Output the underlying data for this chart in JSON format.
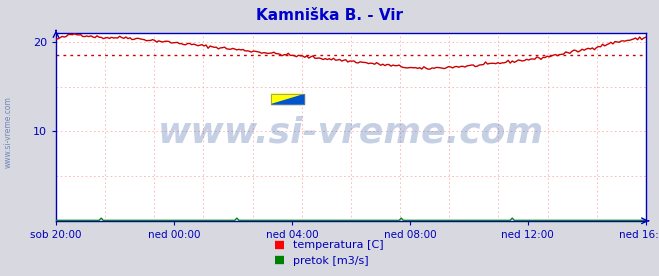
{
  "title": "Kamniška B. - Vir",
  "title_color": "#0000cc",
  "bg_color": "#d8d8e0",
  "plot_bg_color": "#ffffff",
  "grid_color": "#ffb0b0",
  "axis_color": "#0000bb",
  "tick_color": "#0000bb",
  "watermark": "www.si-vreme.com",
  "watermark_color": "#4466aa",
  "watermark_alpha": 0.3,
  "watermark_fontsize": 26,
  "side_watermark": "www.si-vreme.com",
  "side_watermark_color": "#4466aa",
  "ylim": [
    0,
    21
  ],
  "yticks": [
    10,
    20
  ],
  "xtick_labels": [
    "sob 20:00",
    "ned 00:00",
    "ned 04:00",
    "ned 08:00",
    "ned 12:00",
    "ned 16:00"
  ],
  "avg_line_value": 18.6,
  "avg_line_color": "#cc0000",
  "temp_line_color": "#cc0000",
  "flow_line_color": "#008800",
  "legend_temp_label": "temperatura [C]",
  "legend_flow_label": "pretok [m3/s]",
  "n_points": 288
}
